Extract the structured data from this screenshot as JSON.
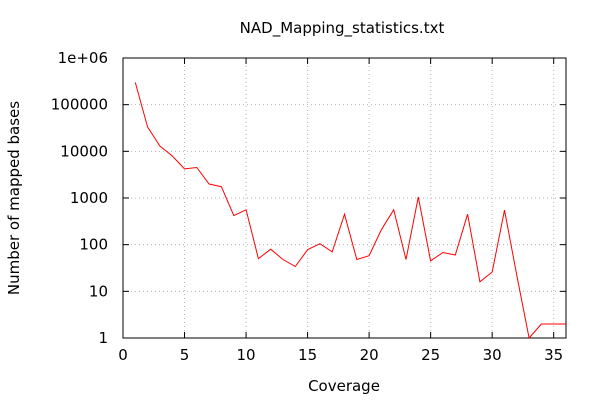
{
  "chart_data": {
    "type": "line",
    "title": "NAD_Mapping_statistics.txt",
    "xlabel": "Coverage",
    "ylabel": "Number of mapped bases",
    "xlim": [
      0,
      36
    ],
    "ylim": [
      1,
      1000000
    ],
    "yscale": "log",
    "grid": true,
    "line_color": "#ff0000",
    "x_ticks": [
      {
        "value": 0,
        "label": "0"
      },
      {
        "value": 5,
        "label": "5"
      },
      {
        "value": 10,
        "label": "10"
      },
      {
        "value": 15,
        "label": "15"
      },
      {
        "value": 20,
        "label": "20"
      },
      {
        "value": 25,
        "label": "25"
      },
      {
        "value": 30,
        "label": "30"
      },
      {
        "value": 35,
        "label": "35"
      }
    ],
    "y_ticks": [
      {
        "value": 1,
        "label": "1"
      },
      {
        "value": 10,
        "label": "10"
      },
      {
        "value": 100,
        "label": "100"
      },
      {
        "value": 1000,
        "label": "1000"
      },
      {
        "value": 10000,
        "label": "10000"
      },
      {
        "value": 100000,
        "label": "100000"
      },
      {
        "value": 1000000,
        "label": "1e+06"
      }
    ],
    "series": [
      {
        "x": [
          1,
          2,
          3,
          4,
          5,
          6,
          7,
          8,
          9,
          10,
          11,
          12,
          13,
          14,
          15,
          16,
          17,
          18,
          19,
          20,
          21,
          22,
          23,
          24,
          25,
          26,
          27,
          28,
          29,
          30,
          31,
          32,
          33,
          34,
          35,
          36
        ],
        "y": [
          300000,
          33000,
          13000,
          8000,
          4200,
          4500,
          2000,
          1750,
          420,
          560,
          50,
          80,
          48,
          34,
          78,
          105,
          70,
          450,
          48,
          58,
          210,
          560,
          48,
          1050,
          45,
          68,
          60,
          450,
          16,
          26,
          550,
          22,
          1,
          2,
          2,
          2
        ]
      }
    ]
  }
}
